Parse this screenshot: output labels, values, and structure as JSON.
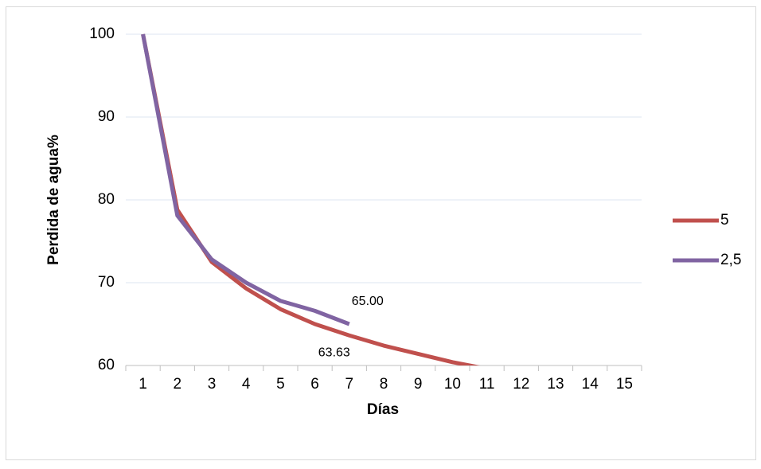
{
  "chart_data": {
    "type": "line",
    "x_label": "Días",
    "y_label": "Perdida de agua%",
    "categories": [
      "1",
      "2",
      "3",
      "4",
      "5",
      "6",
      "7",
      "8",
      "9",
      "10",
      "11",
      "12",
      "13",
      "14",
      "15"
    ],
    "series": [
      {
        "name": "5",
        "color": "#c0504d",
        "values": [
          100,
          78.8,
          72.5,
          69.3,
          66.8,
          65.0,
          63.63,
          62.4,
          61.4,
          60.4,
          59.6,
          null,
          null,
          null,
          null
        ],
        "value_labels": [
          null,
          null,
          null,
          null,
          null,
          null,
          "63.63",
          null,
          null,
          null,
          null,
          null,
          null,
          null,
          null
        ]
      },
      {
        "name": "2,5",
        "color": "#8064a2",
        "values": [
          100,
          78.1,
          72.8,
          70.0,
          67.8,
          66.6,
          65,
          null,
          null,
          null,
          null,
          null,
          null,
          null,
          null
        ],
        "value_labels": [
          null,
          null,
          null,
          null,
          null,
          null,
          "65.00",
          null,
          null,
          null,
          null,
          null,
          null,
          null,
          null
        ]
      }
    ],
    "ylim": [
      60,
      100
    ],
    "yticks": [
      60,
      70,
      80,
      90,
      100
    ],
    "grid": true,
    "legend": "right"
  }
}
